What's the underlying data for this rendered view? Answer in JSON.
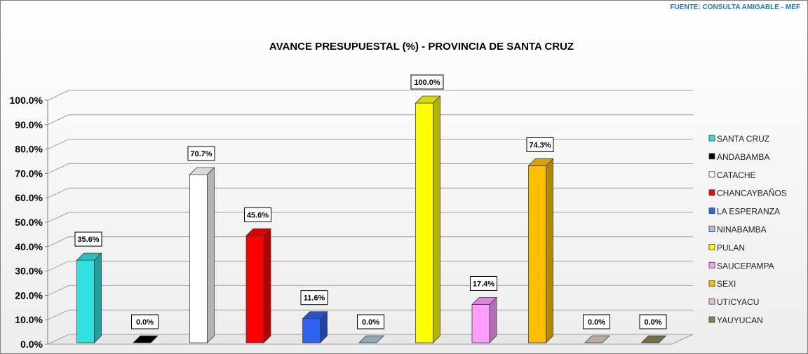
{
  "source": "FUENTE: CONSULTA AMIGABLE - MEF",
  "chart_data": {
    "type": "bar",
    "title": "AVANCE PRESUPUESTAL  (%) - PROVINCIA DE SANTA CRUZ",
    "categories": [
      "SANTA CRUZ",
      "ANDABAMBA",
      "CATACHE",
      "CHANCAYBAÑOS",
      "LA ESPERANZA",
      "NINABAMBA",
      "PULAN",
      "SAUCEPAMPA",
      "SEXI",
      "UTICYACU",
      "YAUYUCAN"
    ],
    "values": [
      35.6,
      0.0,
      70.7,
      45.6,
      11.6,
      0.0,
      100.0,
      17.4,
      74.3,
      0.0,
      0.0
    ],
    "data_labels": [
      "35.6%",
      "0.0%",
      "70.7%",
      "45.6%",
      "11.6%",
      "0.0%",
      "100.0%",
      "17.4%",
      "74.3%",
      "0.0%",
      "0.0%"
    ],
    "colors": [
      "#33e0e0",
      "#000000",
      "#ffffff",
      "#ff0000",
      "#2e62f0",
      "#a9c3dc",
      "#ffff00",
      "#ff9dff",
      "#ffbf00",
      "#ddc8c0",
      "#8a8050"
    ],
    "yticks": [
      "0.0%",
      "10.0%",
      "20.0%",
      "30.0%",
      "40.0%",
      "50.0%",
      "60.0%",
      "70.0%",
      "80.0%",
      "90.0%",
      "100.0%"
    ],
    "ylim": [
      0,
      100
    ],
    "grid": true,
    "legend": "right",
    "style": "3d-column"
  }
}
